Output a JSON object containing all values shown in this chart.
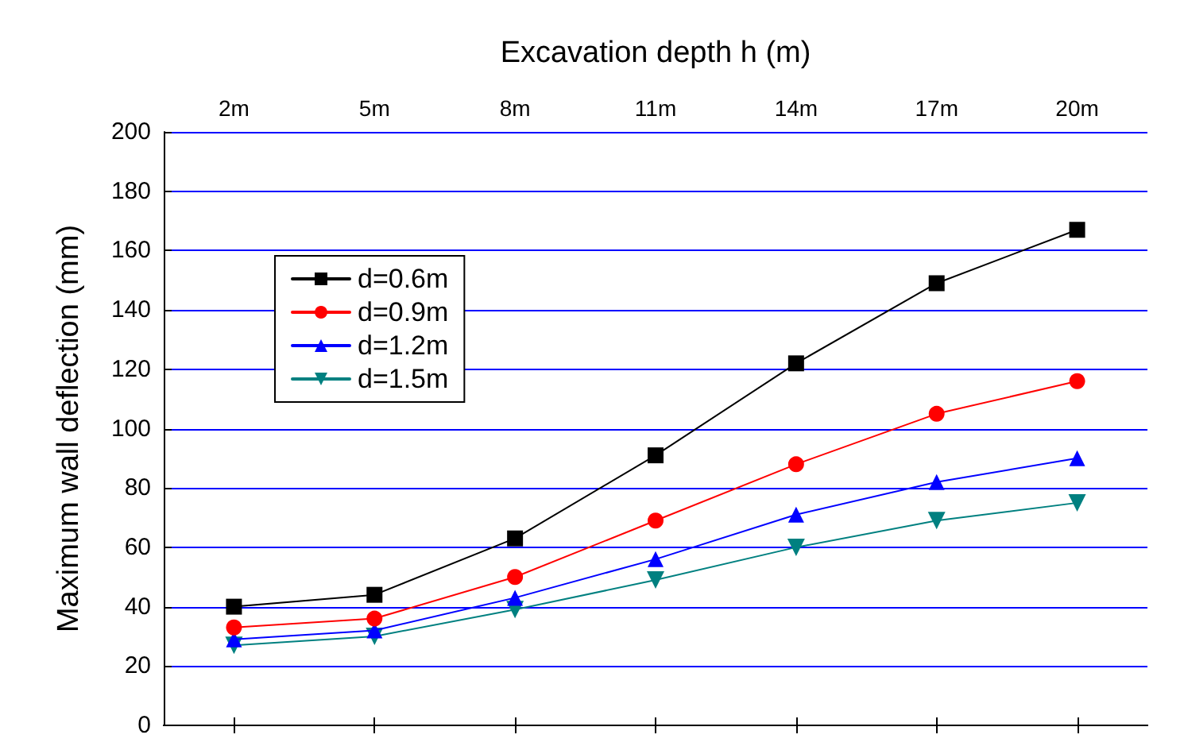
{
  "chart_data": {
    "type": "line",
    "xlabel": "Excavation depth h (m)",
    "ylabel": "Maximum wall deflection (mm)",
    "categories": [
      "2m",
      "5m",
      "8m",
      "11m",
      "14m",
      "17m",
      "20m"
    ],
    "series": [
      {
        "name": "d=0.6m",
        "color": "#000000",
        "marker": "square",
        "values": [
          40,
          44,
          63,
          91,
          122,
          149,
          167
        ]
      },
      {
        "name": "d=0.9m",
        "color": "#ff0000",
        "marker": "circle",
        "values": [
          33,
          36,
          50,
          69,
          88,
          105,
          116
        ]
      },
      {
        "name": "d=1.2m",
        "color": "#0000ff",
        "marker": "triangle",
        "values": [
          29,
          32,
          43,
          56,
          71,
          82,
          90
        ]
      },
      {
        "name": "d=1.5m",
        "color": "#008080",
        "marker": "triangle-down",
        "values": [
          27,
          30,
          39,
          49,
          60,
          69,
          75
        ]
      }
    ],
    "ylim": [
      0,
      200
    ],
    "yticks": [
      0,
      20,
      40,
      60,
      80,
      100,
      120,
      140,
      160,
      180,
      200
    ],
    "grid": "y",
    "legend": "top left",
    "line_style": "solid"
  }
}
